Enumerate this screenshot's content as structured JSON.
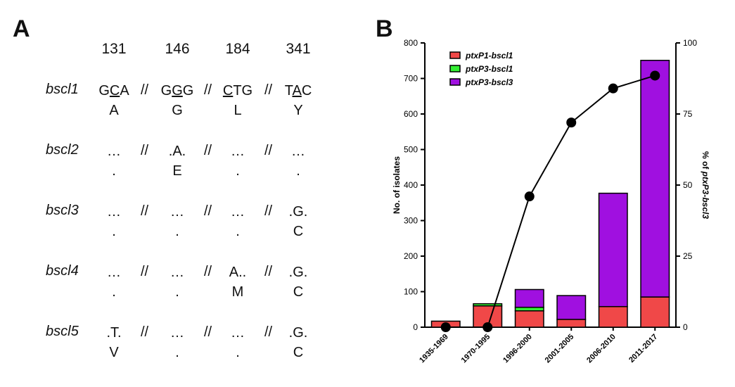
{
  "panelA": {
    "letter": "A",
    "positions": [
      "131",
      "146",
      "184",
      "341"
    ],
    "separator": "//",
    "rows": [
      {
        "allele": "bscl1",
        "cells": [
          {
            "pre": "G",
            "mid": "C",
            "post": "A",
            "aa": "A"
          },
          {
            "pre": "G",
            "mid": "G",
            "post": "G",
            "aa": "G"
          },
          {
            "pre": "",
            "mid": "C",
            "post": "TG",
            "aa": "L"
          },
          {
            "pre": "T",
            "mid": "A",
            "post": "C",
            "aa": "Y"
          }
        ]
      },
      {
        "allele": "bscl2",
        "cells": [
          {
            "codon": "…",
            "aa": "."
          },
          {
            "codon": ".A.",
            "aa": "E"
          },
          {
            "codon": "…",
            "aa": "."
          },
          {
            "codon": "…",
            "aa": "."
          }
        ]
      },
      {
        "allele": "bscl3",
        "cells": [
          {
            "codon": "…",
            "aa": "."
          },
          {
            "codon": "…",
            "aa": "."
          },
          {
            "codon": "…",
            "aa": "."
          },
          {
            "codon": ".G.",
            "aa": "C"
          }
        ]
      },
      {
        "allele": "bscl4",
        "cells": [
          {
            "codon": "…",
            "aa": "."
          },
          {
            "codon": "…",
            "aa": "."
          },
          {
            "codon": "A..",
            "aa": "M"
          },
          {
            "codon": ".G.",
            "aa": "C"
          }
        ]
      },
      {
        "allele": "bscl5",
        "cells": [
          {
            "codon": ".T.",
            "aa": "V"
          },
          {
            "codon": "…",
            "aa": "."
          },
          {
            "codon": "…",
            "aa": "."
          },
          {
            "codon": ".G.",
            "aa": "C"
          }
        ]
      }
    ]
  },
  "panelB": {
    "letter": "B"
  },
  "chart_data": {
    "type": "bar",
    "stacked": true,
    "categories": [
      "1935-1969",
      "1970-1995",
      "1996-2000",
      "2001-2005",
      "2006-2010",
      "2011-2017"
    ],
    "series": [
      {
        "name": "ptxP1-bscl1",
        "color": "#f04848",
        "values": [
          17,
          60,
          46,
          22,
          58,
          85
        ]
      },
      {
        "name": "ptxP3-bscl1",
        "color": "#33ee33",
        "values": [
          0,
          6,
          10,
          0,
          0,
          0
        ]
      },
      {
        "name": "ptxP3-bscl3",
        "color": "#a010e0",
        "values": [
          0,
          0,
          50,
          67,
          319,
          666
        ]
      }
    ],
    "line": {
      "name": "% of ptxP3-bscl3",
      "axis": "right",
      "values": [
        0,
        0,
        46,
        72,
        84,
        88.5
      ]
    },
    "ylabel": "No. of isolates",
    "y2label": "% of ptxP3-bscl3",
    "ylim": [
      0,
      800
    ],
    "yticks": [
      0,
      100,
      200,
      300,
      400,
      500,
      600,
      700,
      800
    ],
    "y2lim": [
      0,
      100
    ],
    "y2ticks": [
      0,
      25,
      50,
      75,
      100
    ],
    "legend": "top-left",
    "grid": false
  }
}
